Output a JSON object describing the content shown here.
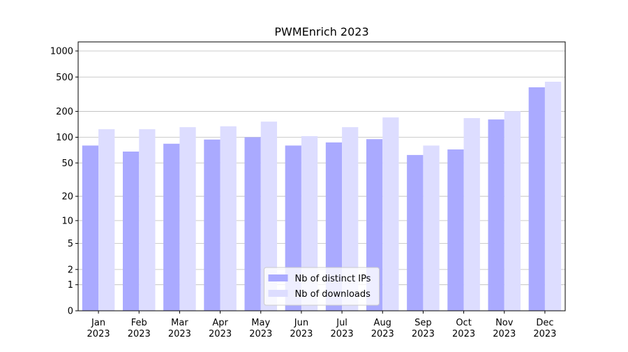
{
  "chart_data": {
    "type": "bar",
    "title": "PWMEnrich 2023",
    "yscale": "log1p",
    "categories": [
      [
        "Jan",
        "2023"
      ],
      [
        "Feb",
        "2023"
      ],
      [
        "Mar",
        "2023"
      ],
      [
        "Apr",
        "2023"
      ],
      [
        "May",
        "2023"
      ],
      [
        "Jun",
        "2023"
      ],
      [
        "Jul",
        "2023"
      ],
      [
        "Aug",
        "2023"
      ],
      [
        "Sep",
        "2023"
      ],
      [
        "Oct",
        "2023"
      ],
      [
        "Nov",
        "2023"
      ],
      [
        "Dec",
        "2023"
      ]
    ],
    "series": [
      {
        "name": "Nb of distinct IPs",
        "color": "#aaaaff",
        "values": [
          80,
          68,
          84,
          94,
          100,
          80,
          87,
          95,
          62,
          72,
          161,
          380
        ]
      },
      {
        "name": "Nb of downloads",
        "color": "#ddddff",
        "values": [
          124,
          124,
          131,
          134,
          152,
          103,
          131,
          170,
          80,
          167,
          201,
          441
        ]
      }
    ],
    "ylim": [
      0,
      1273
    ],
    "yticks": [
      0,
      1,
      2,
      5,
      10,
      20,
      50,
      100,
      200,
      500,
      1000
    ],
    "grid": true,
    "legend": "lower center"
  }
}
